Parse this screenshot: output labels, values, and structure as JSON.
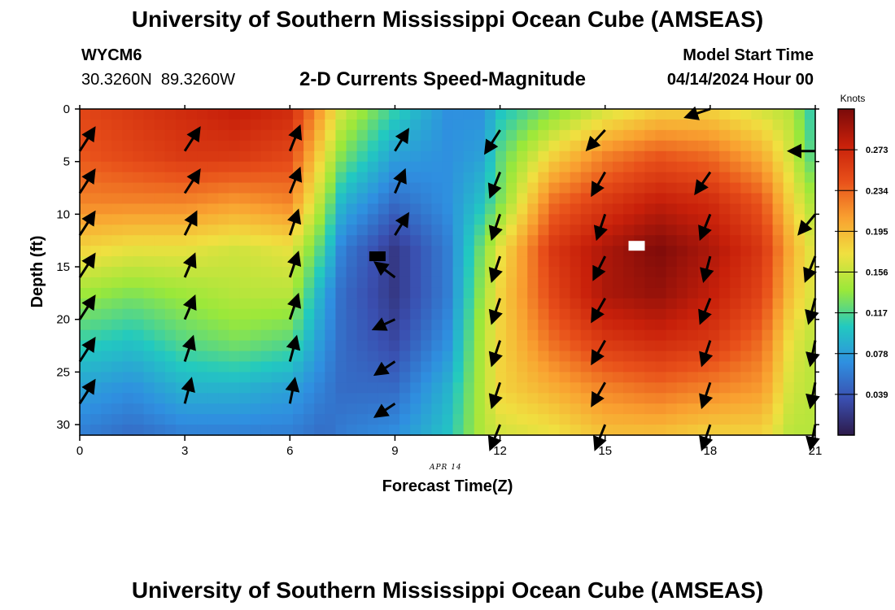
{
  "header": {
    "title": "University of Southern Mississippi Ocean Cube (AMSEAS)",
    "station_id": "WYCM6",
    "station_coords": "30.3260N  89.3260W",
    "subtitle": "2-D Currents Speed-Magnitude",
    "start_label": "Model Start Time",
    "start_value": "04/14/2024 Hour 00"
  },
  "footer": {
    "title": "University of Southern Mississippi Ocean Cube (AMSEAS)"
  },
  "chart_data": {
    "type": "heatmap",
    "title": "2-D Currents Speed-Magnitude",
    "xlabel": "Forecast Time(Z)",
    "ylabel": "Depth (ft)",
    "date_label": "APR 14",
    "xlim": [
      0,
      21
    ],
    "ylim": [
      0,
      31
    ],
    "y_inverted": true,
    "x_ticks": [
      0,
      3,
      6,
      9,
      12,
      15,
      18,
      21
    ],
    "y_ticks": [
      0,
      5,
      10,
      15,
      20,
      25,
      30
    ],
    "colorbar": {
      "label": "Knots",
      "range": [
        0,
        0.312
      ],
      "ticks": [
        "0.273",
        "0.234",
        "0.195",
        "0.156",
        "0.117",
        "0.078",
        "0.039"
      ],
      "colors": [
        "#2d1a4a",
        "#3a4fb0",
        "#2f8fe0",
        "#22c9c0",
        "#9ae83a",
        "#f0e040",
        "#f9a030",
        "#e8501a",
        "#c8200a",
        "#7a0a0a"
      ]
    },
    "columns": [
      {
        "x": 0,
        "speed": [
          0.25,
          0.24,
          0.22,
          0.18,
          0.14,
          0.11,
          0.08,
          0.06
        ]
      },
      {
        "x": 1.5,
        "speed": [
          0.26,
          0.25,
          0.22,
          0.17,
          0.13,
          0.1,
          0.07,
          0.05
        ]
      },
      {
        "x": 3,
        "speed": [
          0.27,
          0.26,
          0.22,
          0.17,
          0.14,
          0.12,
          0.09,
          0.06
        ]
      },
      {
        "x": 4.5,
        "speed": [
          0.28,
          0.26,
          0.21,
          0.16,
          0.15,
          0.13,
          0.09,
          0.06
        ]
      },
      {
        "x": 6,
        "speed": [
          0.27,
          0.25,
          0.22,
          0.17,
          0.15,
          0.12,
          0.08,
          0.06
        ]
      },
      {
        "x": 7,
        "speed": [
          0.2,
          0.17,
          0.14,
          0.11,
          0.08,
          0.07,
          0.06,
          0.05
        ]
      },
      {
        "x": 7.5,
        "speed": [
          0.16,
          0.13,
          0.09,
          0.06,
          0.05,
          0.05,
          0.05,
          0.06
        ]
      },
      {
        "x": 9,
        "speed": [
          0.11,
          0.08,
          0.05,
          0.02,
          0.02,
          0.03,
          0.05,
          0.07
        ]
      },
      {
        "x": 10.5,
        "speed": [
          0.07,
          0.07,
          0.07,
          0.06,
          0.06,
          0.07,
          0.09,
          0.1
        ]
      },
      {
        "x": 11.5,
        "speed": [
          0.07,
          0.08,
          0.1,
          0.13,
          0.14,
          0.15,
          0.15,
          0.15
        ]
      },
      {
        "x": 12,
        "speed": [
          0.1,
          0.12,
          0.13,
          0.17,
          0.18,
          0.18,
          0.18,
          0.16
        ]
      },
      {
        "x": 13.5,
        "speed": [
          0.13,
          0.18,
          0.23,
          0.26,
          0.25,
          0.23,
          0.2,
          0.17
        ]
      },
      {
        "x": 15,
        "speed": [
          0.16,
          0.22,
          0.26,
          0.29,
          0.29,
          0.26,
          0.22,
          0.19
        ]
      },
      {
        "x": 16.5,
        "speed": [
          0.18,
          0.24,
          0.28,
          0.31,
          0.3,
          0.27,
          0.23,
          0.19
        ]
      },
      {
        "x": 18,
        "speed": [
          0.18,
          0.23,
          0.27,
          0.29,
          0.28,
          0.26,
          0.22,
          0.18
        ]
      },
      {
        "x": 19.5,
        "speed": [
          0.16,
          0.2,
          0.24,
          0.26,
          0.25,
          0.23,
          0.21,
          0.18
        ]
      },
      {
        "x": 20.3,
        "speed": [
          0.15,
          0.16,
          0.18,
          0.2,
          0.19,
          0.17,
          0.16,
          0.15
        ]
      },
      {
        "x": 21,
        "speed": [
          0.1,
          0.11,
          0.14,
          0.16,
          0.16,
          0.15,
          0.15,
          0.15
        ]
      }
    ],
    "depths": [
      0,
      4.4,
      8.9,
      13.3,
      17.7,
      22.1,
      26.6,
      31
    ],
    "vectors": [
      {
        "x": 0,
        "d": 4,
        "u": 0.09,
        "v": 0.14
      },
      {
        "x": 0,
        "d": 8,
        "u": 0.09,
        "v": 0.14
      },
      {
        "x": 0,
        "d": 12,
        "u": 0.09,
        "v": 0.14
      },
      {
        "x": 0,
        "d": 16,
        "u": 0.09,
        "v": 0.14
      },
      {
        "x": 0,
        "d": 20,
        "u": 0.09,
        "v": 0.14
      },
      {
        "x": 0,
        "d": 24,
        "u": 0.09,
        "v": 0.14
      },
      {
        "x": 0,
        "d": 28,
        "u": 0.09,
        "v": 0.14
      },
      {
        "x": 3,
        "d": 4,
        "u": 0.09,
        "v": 0.14
      },
      {
        "x": 3,
        "d": 8,
        "u": 0.09,
        "v": 0.14
      },
      {
        "x": 3,
        "d": 12,
        "u": 0.07,
        "v": 0.14
      },
      {
        "x": 3,
        "d": 16,
        "u": 0.06,
        "v": 0.14
      },
      {
        "x": 3,
        "d": 20,
        "u": 0.06,
        "v": 0.14
      },
      {
        "x": 3,
        "d": 24,
        "u": 0.05,
        "v": 0.15
      },
      {
        "x": 3,
        "d": 28,
        "u": 0.04,
        "v": 0.15
      },
      {
        "x": 6,
        "d": 4,
        "u": 0.06,
        "v": 0.15
      },
      {
        "x": 6,
        "d": 8,
        "u": 0.06,
        "v": 0.15
      },
      {
        "x": 6,
        "d": 12,
        "u": 0.05,
        "v": 0.15
      },
      {
        "x": 6,
        "d": 16,
        "u": 0.05,
        "v": 0.15
      },
      {
        "x": 6,
        "d": 20,
        "u": 0.05,
        "v": 0.15
      },
      {
        "x": 6,
        "d": 24,
        "u": 0.04,
        "v": 0.15
      },
      {
        "x": 6,
        "d": 28,
        "u": 0.03,
        "v": 0.15
      },
      {
        "x": 9,
        "d": 4,
        "u": 0.08,
        "v": 0.13
      },
      {
        "x": 9,
        "d": 8,
        "u": 0.06,
        "v": 0.14
      },
      {
        "x": 9,
        "d": 12,
        "u": 0.08,
        "v": 0.13
      },
      {
        "x": 9,
        "d": 16,
        "u": -0.12,
        "v": 0.09
      },
      {
        "x": 9,
        "d": 20,
        "u": -0.13,
        "v": -0.06
      },
      {
        "x": 9,
        "d": 24,
        "u": -0.12,
        "v": -0.08
      },
      {
        "x": 9,
        "d": 28,
        "u": -0.12,
        "v": -0.08
      },
      {
        "x": 12,
        "d": 2,
        "u": -0.09,
        "v": -0.14
      },
      {
        "x": 12,
        "d": 6,
        "u": -0.06,
        "v": -0.15
      },
      {
        "x": 12,
        "d": 10,
        "u": -0.05,
        "v": -0.15
      },
      {
        "x": 12,
        "d": 14,
        "u": -0.05,
        "v": -0.15
      },
      {
        "x": 12,
        "d": 18,
        "u": -0.05,
        "v": -0.15
      },
      {
        "x": 12,
        "d": 22,
        "u": -0.05,
        "v": -0.15
      },
      {
        "x": 12,
        "d": 26,
        "u": -0.05,
        "v": -0.15
      },
      {
        "x": 12,
        "d": 30,
        "u": -0.06,
        "v": -0.15
      },
      {
        "x": 15,
        "d": 2,
        "u": -0.11,
        "v": -0.12
      },
      {
        "x": 15,
        "d": 6,
        "u": -0.08,
        "v": -0.14
      },
      {
        "x": 15,
        "d": 10,
        "u": -0.05,
        "v": -0.15
      },
      {
        "x": 15,
        "d": 14,
        "u": -0.07,
        "v": -0.14
      },
      {
        "x": 15,
        "d": 18,
        "u": -0.08,
        "v": -0.14
      },
      {
        "x": 15,
        "d": 22,
        "u": -0.08,
        "v": -0.14
      },
      {
        "x": 15,
        "d": 26,
        "u": -0.08,
        "v": -0.14
      },
      {
        "x": 15,
        "d": 30,
        "u": -0.06,
        "v": -0.15
      },
      {
        "x": 18,
        "d": 0,
        "u": -0.15,
        "v": -0.05
      },
      {
        "x": 18,
        "d": 6,
        "u": -0.09,
        "v": -0.13
      },
      {
        "x": 18,
        "d": 10,
        "u": -0.06,
        "v": -0.15
      },
      {
        "x": 18,
        "d": 14,
        "u": -0.04,
        "v": -0.15
      },
      {
        "x": 18,
        "d": 18,
        "u": -0.06,
        "v": -0.15
      },
      {
        "x": 18,
        "d": 22,
        "u": -0.05,
        "v": -0.15
      },
      {
        "x": 18,
        "d": 26,
        "u": -0.05,
        "v": -0.15
      },
      {
        "x": 18,
        "d": 30,
        "u": -0.05,
        "v": -0.15
      },
      {
        "x": 21,
        "d": 4,
        "u": -0.16,
        "v": 0.0
      },
      {
        "x": 21,
        "d": 10,
        "u": -0.1,
        "v": -0.12
      },
      {
        "x": 21,
        "d": 14,
        "u": -0.06,
        "v": -0.15
      },
      {
        "x": 21,
        "d": 18,
        "u": -0.04,
        "v": -0.15
      },
      {
        "x": 21,
        "d": 22,
        "u": -0.03,
        "v": -0.15
      },
      {
        "x": 21,
        "d": 26,
        "u": -0.03,
        "v": -0.15
      },
      {
        "x": 21,
        "d": 30,
        "u": -0.03,
        "v": -0.15
      }
    ],
    "markers": [
      {
        "type": "min",
        "x": 8.5,
        "d": 14,
        "color": "#000000"
      },
      {
        "type": "max",
        "x": 15.9,
        "d": 13,
        "color": "#ffffff"
      }
    ]
  }
}
